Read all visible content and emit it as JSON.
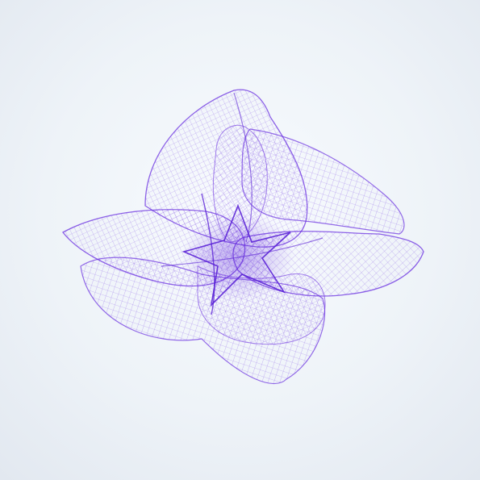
{
  "artwork": {
    "subject": "purple-wireframe-mesh-flower",
    "stroke_color": "#6a2fe0",
    "edge_color": "#5a21d6",
    "background_color": "#eef3f8",
    "petal_count": 5
  }
}
